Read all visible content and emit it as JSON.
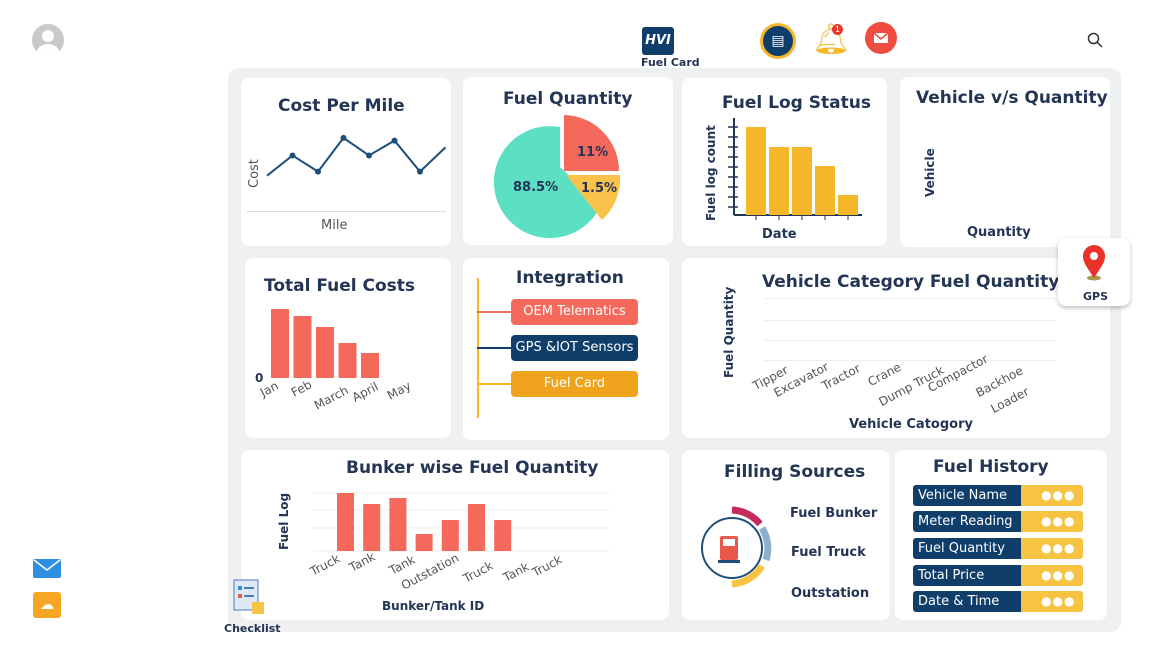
{
  "header": {
    "logo_text": "HVI",
    "logo_caption": "Fuel Card",
    "notification_count": "1"
  },
  "sidebar": {
    "icons": [
      "user-avatar-icon",
      "mail-icon",
      "chat-icon"
    ]
  },
  "checklist": {
    "label": "Checklist"
  },
  "gps": {
    "label": "GPS"
  },
  "colors": {
    "accent_red": "#f4695c",
    "accent_yellow": "#f6b72a",
    "navy": "#103e6b",
    "teal": "#5ce0c4"
  },
  "cost_per_mile": {
    "title": "Cost Per Mile",
    "xlabel": "Mile",
    "ylabel": "Cost"
  },
  "fuel_quantity": {
    "title": "Fuel Quantity"
  },
  "fuel_log_status": {
    "title": "Fuel Log Status",
    "xlabel": "Date",
    "ylabel": "Fuel log count"
  },
  "vehicle_vs_quantity": {
    "title": "Vehicle v/s Quantity",
    "xlabel": "Quantity",
    "ylabel": "Vehicle"
  },
  "total_fuel_costs": {
    "title": "Total Fuel Costs",
    "zero": "0"
  },
  "integration": {
    "title": "Integration",
    "items": [
      "OEM Telematics",
      "GPS &IOT Sensors",
      "Fuel Card"
    ]
  },
  "vehicle_category": {
    "title": "Vehicle Category Fuel Quantity",
    "xlabel": "Vehicle Catogory",
    "ylabel": "Fuel Quantity",
    "categories": [
      "Tipper",
      "Excavator",
      "Tractor",
      "Crane",
      "Dump Truck",
      "Compactor",
      "Backhoe",
      "Loader"
    ]
  },
  "bunker": {
    "title": "Bunker wise Fuel Quantity",
    "xlabel": "Bunker/Tank ID",
    "ylabel": "Fuel Log"
  },
  "filling_sources": {
    "title": "Filling Sources",
    "items": [
      "Fuel Bunker",
      "Fuel Truck",
      "Outstation"
    ]
  },
  "fuel_history": {
    "title": "Fuel History",
    "rows": [
      {
        "label": "Vehicle Name",
        "value": "●●●"
      },
      {
        "label": "Meter Reading",
        "value": "●●●"
      },
      {
        "label": "Fuel Quantity",
        "value": "●●●"
      },
      {
        "label": "Total Price",
        "value": "●●●"
      },
      {
        "label": "Date & Time",
        "value": "●●●"
      }
    ]
  },
  "chart_data": [
    {
      "type": "line",
      "title": "Cost Per Mile",
      "xlabel": "Mile",
      "ylabel": "Cost",
      "values": [
        18,
        33,
        21,
        46,
        33,
        44,
        21,
        39
      ]
    },
    {
      "type": "pie",
      "title": "Fuel Quantity",
      "labels": [
        "88.5%",
        "11%",
        "1.5%"
      ],
      "values": [
        88.5,
        11,
        1.5
      ],
      "colors": [
        "#5ce0c4",
        "#f4695c",
        "#f9c24a"
      ]
    },
    {
      "type": "bar",
      "title": "Fuel Log Status",
      "xlabel": "Date",
      "ylabel": "Fuel log count",
      "values": [
        88,
        68,
        68,
        49,
        20
      ]
    },
    {
      "type": "bar",
      "title": "Total Fuel Costs",
      "categories": [
        "Jan",
        "Feb",
        "March",
        "April",
        "May"
      ],
      "values": [
        69,
        62,
        51,
        35,
        25
      ]
    },
    {
      "type": "bar",
      "title": "Bunker wise Fuel Quantity",
      "xlabel": "Bunker/Tank ID",
      "ylabel": "Fuel Log",
      "categories": [
        "Truck",
        "Tank",
        "Tank",
        "Outstation",
        "Truck",
        "Tank",
        "Truck"
      ],
      "values": [
        58,
        47,
        53,
        17,
        31,
        47,
        31
      ]
    }
  ]
}
